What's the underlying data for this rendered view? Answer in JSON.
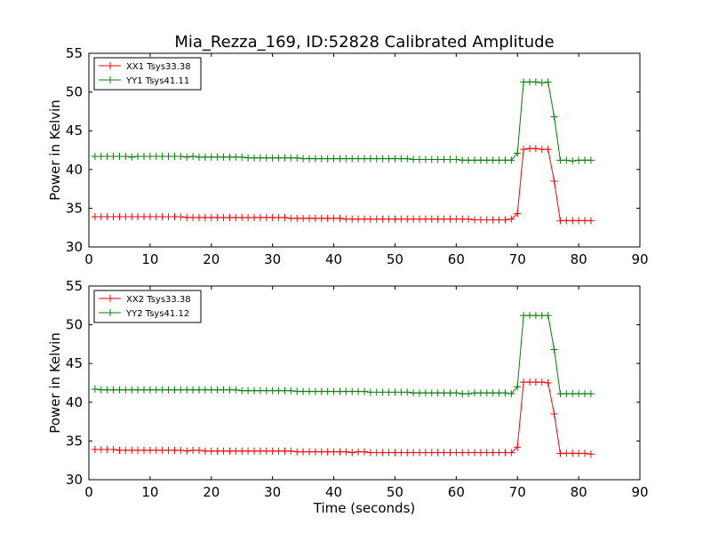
{
  "title": "Mia_Rezza_169, ID:52828 Calibrated Amplitude",
  "colors": {
    "red": "#ff0000",
    "green": "#008000",
    "axis": "#000000",
    "background": "#ffffff"
  },
  "chart_data": [
    {
      "type": "line",
      "title": "Mia_Rezza_169, ID:52828 Calibrated Amplitude",
      "xlabel": "",
      "ylabel": "Power in Kelvin",
      "xlim": [
        0,
        90
      ],
      "ylim": [
        30,
        55
      ],
      "xticks": [
        "0",
        "10",
        "20",
        "30",
        "40",
        "50",
        "60",
        "70",
        "80",
        "90"
      ],
      "yticks": [
        "30",
        "35",
        "40",
        "45",
        "50",
        "55"
      ],
      "grid": false,
      "legend_position": "upper-left",
      "x": [
        1,
        2,
        3,
        4,
        5,
        6,
        7,
        8,
        9,
        10,
        11,
        12,
        13,
        14,
        15,
        16,
        17,
        18,
        19,
        20,
        21,
        22,
        23,
        24,
        25,
        26,
        27,
        28,
        29,
        30,
        31,
        32,
        33,
        34,
        35,
        36,
        37,
        38,
        39,
        40,
        41,
        42,
        43,
        44,
        45,
        46,
        47,
        48,
        49,
        50,
        51,
        52,
        53,
        54,
        55,
        56,
        57,
        58,
        59,
        60,
        61,
        62,
        63,
        64,
        65,
        66,
        67,
        68,
        69,
        70,
        71,
        72,
        73,
        74,
        75,
        76,
        77,
        78,
        79,
        80,
        81,
        82
      ],
      "series": [
        {
          "name": "XX1 Tsys33.38",
          "color": "#ff0000",
          "values": [
            33.9,
            33.9,
            33.9,
            33.9,
            33.9,
            33.9,
            33.9,
            33.9,
            33.9,
            33.9,
            33.9,
            33.9,
            33.9,
            33.9,
            33.9,
            33.8,
            33.8,
            33.8,
            33.8,
            33.8,
            33.8,
            33.8,
            33.8,
            33.8,
            33.8,
            33.8,
            33.8,
            33.8,
            33.8,
            33.8,
            33.8,
            33.8,
            33.7,
            33.7,
            33.7,
            33.7,
            33.7,
            33.7,
            33.7,
            33.7,
            33.7,
            33.6,
            33.6,
            33.6,
            33.6,
            33.6,
            33.6,
            33.6,
            33.6,
            33.6,
            33.6,
            33.6,
            33.6,
            33.6,
            33.6,
            33.6,
            33.6,
            33.6,
            33.6,
            33.6,
            33.6,
            33.6,
            33.5,
            33.5,
            33.5,
            33.5,
            33.5,
            33.5,
            33.6,
            34.3,
            42.6,
            42.7,
            42.7,
            42.6,
            42.6,
            38.5,
            33.4,
            33.4,
            33.4,
            33.4,
            33.4,
            33.4
          ]
        },
        {
          "name": "YY1 Tsys41.11",
          "color": "#008000",
          "values": [
            41.7,
            41.7,
            41.7,
            41.7,
            41.7,
            41.7,
            41.6,
            41.7,
            41.7,
            41.7,
            41.7,
            41.7,
            41.7,
            41.7,
            41.7,
            41.6,
            41.7,
            41.6,
            41.6,
            41.6,
            41.6,
            41.6,
            41.6,
            41.6,
            41.6,
            41.5,
            41.5,
            41.5,
            41.5,
            41.5,
            41.5,
            41.5,
            41.5,
            41.5,
            41.4,
            41.4,
            41.4,
            41.4,
            41.4,
            41.4,
            41.4,
            41.4,
            41.4,
            41.4,
            41.4,
            41.4,
            41.4,
            41.4,
            41.4,
            41.4,
            41.4,
            41.4,
            41.3,
            41.3,
            41.3,
            41.3,
            41.3,
            41.3,
            41.3,
            41.3,
            41.2,
            41.2,
            41.2,
            41.2,
            41.2,
            41.2,
            41.2,
            41.2,
            41.2,
            42.1,
            51.3,
            51.3,
            51.3,
            51.2,
            51.3,
            46.8,
            41.2,
            41.2,
            41.1,
            41.2,
            41.2,
            41.2
          ]
        }
      ]
    },
    {
      "type": "line",
      "title": "",
      "xlabel": "Time (seconds)",
      "ylabel": "Power in Kelvin",
      "xlim": [
        0,
        90
      ],
      "ylim": [
        30,
        55
      ],
      "xticks": [
        "0",
        "10",
        "20",
        "30",
        "40",
        "50",
        "60",
        "70",
        "80",
        "90"
      ],
      "yticks": [
        "30",
        "35",
        "40",
        "45",
        "50",
        "55"
      ],
      "grid": false,
      "legend_position": "upper-left",
      "x": [
        1,
        2,
        3,
        4,
        5,
        6,
        7,
        8,
        9,
        10,
        11,
        12,
        13,
        14,
        15,
        16,
        17,
        18,
        19,
        20,
        21,
        22,
        23,
        24,
        25,
        26,
        27,
        28,
        29,
        30,
        31,
        32,
        33,
        34,
        35,
        36,
        37,
        38,
        39,
        40,
        41,
        42,
        43,
        44,
        45,
        46,
        47,
        48,
        49,
        50,
        51,
        52,
        53,
        54,
        55,
        56,
        57,
        58,
        59,
        60,
        61,
        62,
        63,
        64,
        65,
        66,
        67,
        68,
        69,
        70,
        71,
        72,
        73,
        74,
        75,
        76,
        77,
        78,
        79,
        80,
        81,
        82
      ],
      "series": [
        {
          "name": "XX2 Tsys33.38",
          "color": "#ff0000",
          "values": [
            33.9,
            33.9,
            33.9,
            33.9,
            33.8,
            33.8,
            33.8,
            33.8,
            33.8,
            33.8,
            33.8,
            33.8,
            33.8,
            33.8,
            33.8,
            33.7,
            33.8,
            33.8,
            33.7,
            33.7,
            33.7,
            33.7,
            33.7,
            33.7,
            33.7,
            33.7,
            33.7,
            33.7,
            33.7,
            33.7,
            33.7,
            33.7,
            33.7,
            33.6,
            33.6,
            33.6,
            33.6,
            33.6,
            33.6,
            33.6,
            33.6,
            33.6,
            33.5,
            33.6,
            33.6,
            33.5,
            33.5,
            33.5,
            33.5,
            33.5,
            33.5,
            33.5,
            33.5,
            33.5,
            33.5,
            33.5,
            33.5,
            33.5,
            33.5,
            33.5,
            33.5,
            33.5,
            33.5,
            33.5,
            33.5,
            33.5,
            33.5,
            33.5,
            33.5,
            34.2,
            42.6,
            42.6,
            42.6,
            42.6,
            42.5,
            38.5,
            33.4,
            33.4,
            33.4,
            33.4,
            33.4,
            33.3
          ]
        },
        {
          "name": "YY2 Tsys41.12",
          "color": "#008000",
          "values": [
            41.7,
            41.6,
            41.6,
            41.6,
            41.6,
            41.6,
            41.6,
            41.6,
            41.6,
            41.6,
            41.6,
            41.6,
            41.6,
            41.6,
            41.6,
            41.6,
            41.6,
            41.6,
            41.6,
            41.6,
            41.6,
            41.6,
            41.6,
            41.6,
            41.5,
            41.5,
            41.5,
            41.5,
            41.5,
            41.5,
            41.5,
            41.5,
            41.5,
            41.4,
            41.4,
            41.4,
            41.4,
            41.4,
            41.4,
            41.4,
            41.4,
            41.4,
            41.4,
            41.4,
            41.4,
            41.3,
            41.3,
            41.3,
            41.3,
            41.3,
            41.3,
            41.3,
            41.2,
            41.2,
            41.2,
            41.2,
            41.2,
            41.2,
            41.2,
            41.2,
            41.1,
            41.1,
            41.2,
            41.2,
            41.2,
            41.2,
            41.2,
            41.2,
            41.1,
            42.0,
            51.2,
            51.2,
            51.2,
            51.2,
            51.2,
            46.8,
            41.1,
            41.1,
            41.1,
            41.1,
            41.1,
            41.1
          ]
        }
      ]
    }
  ]
}
